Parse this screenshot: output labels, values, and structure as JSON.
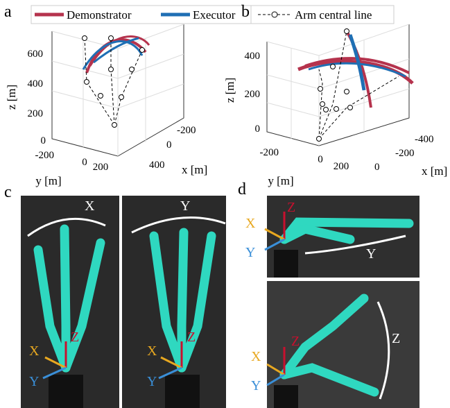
{
  "panels": {
    "a": "a",
    "b": "b",
    "c": "c",
    "d": "d"
  },
  "legend": {
    "demonstrator": "Demonstrator",
    "executor": "Executor",
    "arm_line": "Arm central line"
  },
  "plot_a": {
    "zlabel": "z [m]",
    "ylabel": "y [m]",
    "xlabel": "x [m]",
    "zticks": [
      600,
      400,
      200,
      0
    ],
    "yticks": [
      -200,
      0,
      200
    ],
    "xticks": [
      -200,
      0,
      400
    ]
  },
  "plot_b": {
    "zlabel": "z [m]",
    "ylabel": "y [m]",
    "xlabel": "x [m]",
    "zticks": [
      400,
      200,
      0
    ],
    "yticks": [
      -200,
      0,
      200
    ],
    "xticks": [
      -400,
      -200,
      0
    ]
  },
  "photo_c": {
    "left": {
      "motion": "X",
      "x": "X",
      "y": "Y",
      "z": "Z"
    },
    "right": {
      "motion": "Y",
      "x": "X",
      "y": "Y",
      "z": "Z"
    }
  },
  "photo_d": {
    "top": {
      "motion": "Y",
      "x": "X",
      "y": "Y",
      "z": "Z"
    },
    "bottom": {
      "motion": "Z",
      "x": "X",
      "y": "Y",
      "z": "Z"
    }
  }
}
